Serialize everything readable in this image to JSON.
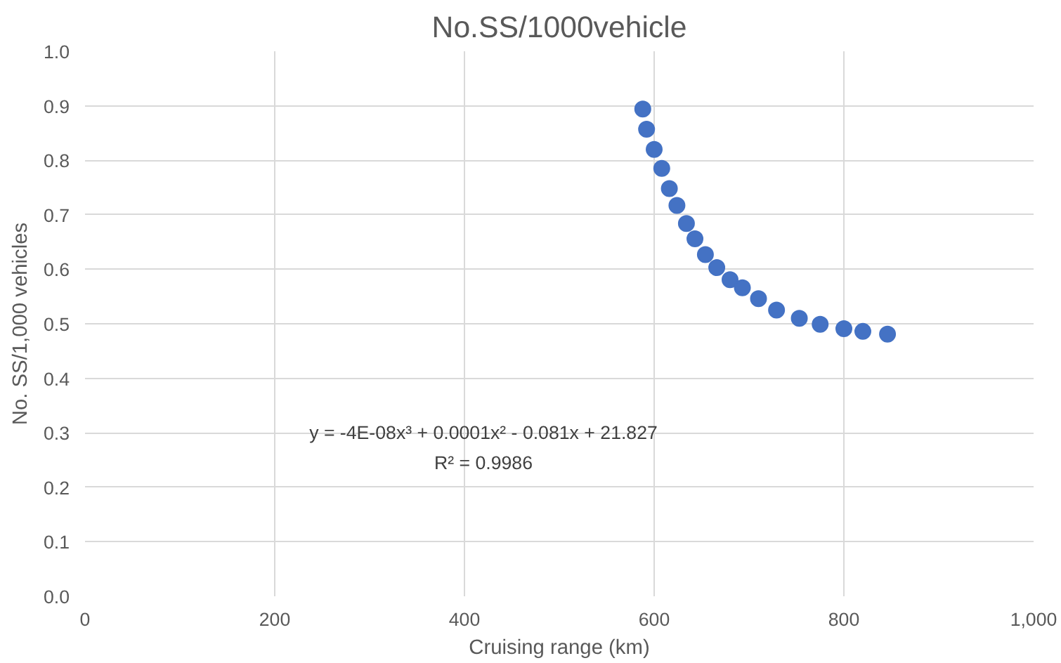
{
  "chart_data": {
    "type": "scatter",
    "title": "No.SS/1000vehicle",
    "xlabel": "Cruising range (km)",
    "ylabel": "No. SS/1,000 vehicles",
    "x": [
      588,
      592,
      600,
      608,
      616,
      624,
      634,
      643,
      654,
      666,
      680,
      693,
      710,
      729,
      753,
      775,
      800,
      820,
      846
    ],
    "series": [
      {
        "color": "#4472c4",
        "values": [
          0.894,
          0.857,
          0.82,
          0.785,
          0.748,
          0.717,
          0.684,
          0.656,
          0.627,
          0.603,
          0.581,
          0.566,
          0.546,
          0.525,
          0.51,
          0.499,
          0.491,
          0.486,
          0.481
        ]
      }
    ],
    "xlim": [
      0,
      1000
    ],
    "xticks": [
      0,
      200,
      400,
      600,
      800,
      {
        "value": 1000,
        "label": "1,000"
      }
    ],
    "ylim": [
      0,
      1
    ],
    "yticks": [
      {
        "value": 0,
        "label": "0.0"
      },
      0.1,
      0.2,
      0.3,
      0.4,
      0.5,
      0.6,
      0.7,
      0.8,
      0.9,
      {
        "value": 1,
        "label": "1.0"
      }
    ],
    "grid": true,
    "marker": "circle",
    "annotations": [
      "y = -4E-08x³ + 0.0001x² - 0.081x + 21.827",
      "R² = 0.9986"
    ]
  }
}
